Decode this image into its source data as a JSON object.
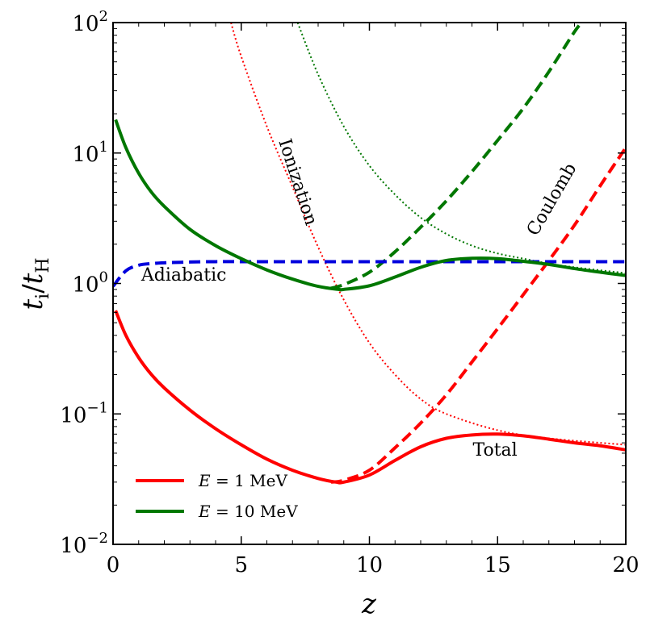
{
  "chart_data": {
    "type": "line",
    "title": "",
    "xlabel": "z",
    "ylabel": "t_i/t_H",
    "ylabel_main": "t",
    "ylabel_sub": "i",
    "ylabel_slash": "/",
    "ylabel_main2": "t",
    "ylabel_sub2": "H",
    "xlim": [
      0,
      20
    ],
    "ylim": [
      0.01,
      100
    ],
    "yscale": "log",
    "x_ticks": [
      {
        "value": 0,
        "label": "0"
      },
      {
        "value": 5,
        "label": "5"
      },
      {
        "value": 10,
        "label": "10"
      },
      {
        "value": 15,
        "label": "15"
      },
      {
        "value": 20,
        "label": "20"
      }
    ],
    "y_ticks": [
      {
        "value": 0.01,
        "base": "10",
        "exp": "−2"
      },
      {
        "value": 0.1,
        "base": "10",
        "exp": "−1"
      },
      {
        "value": 1,
        "base": "10",
        "exp": "0"
      },
      {
        "value": 10,
        "base": "10",
        "exp": "1"
      },
      {
        "value": 100,
        "base": "10",
        "exp": "2"
      }
    ],
    "series": [
      {
        "name": "Adiabatic",
        "color": "#0000dd",
        "style": "dashed",
        "x": [
          0,
          0.5,
          1,
          1.5,
          2,
          3,
          4,
          5,
          7,
          10,
          15,
          20
        ],
        "y": [
          0.95,
          1.25,
          1.38,
          1.42,
          1.44,
          1.46,
          1.47,
          1.47,
          1.47,
          1.47,
          1.47,
          1.47
        ]
      },
      {
        "name": "Ionization E = 1 MeV",
        "color": "#ff0000",
        "style": "dotted",
        "x": [
          4.6,
          5,
          6,
          7,
          8,
          9,
          10,
          11,
          12,
          13,
          15,
          17,
          20
        ],
        "y": [
          100,
          55,
          16,
          5.5,
          1.9,
          0.75,
          0.35,
          0.2,
          0.13,
          0.1,
          0.075,
          0.065,
          0.058
        ]
      },
      {
        "name": "Ionization E = 10 MeV",
        "color": "#007700",
        "style": "dotted",
        "x": [
          7.2,
          8,
          9,
          10,
          11,
          12,
          13,
          14,
          15,
          16,
          17,
          18,
          20
        ],
        "y": [
          100,
          40,
          16,
          8,
          4.8,
          3.2,
          2.4,
          1.95,
          1.7,
          1.55,
          1.42,
          1.33,
          1.2
        ]
      },
      {
        "name": "Coulomb E = 1 MeV",
        "color": "#ff0000",
        "style": "dashed",
        "x": [
          8.5,
          9,
          10,
          11,
          12,
          13,
          14,
          15,
          16,
          17,
          18,
          19,
          20
        ],
        "y": [
          0.03,
          0.031,
          0.037,
          0.055,
          0.085,
          0.14,
          0.25,
          0.45,
          0.82,
          1.5,
          2.8,
          5.6,
          11
        ]
      },
      {
        "name": "Coulomb E = 10 MeV",
        "color": "#007700",
        "style": "dashed",
        "x": [
          8.5,
          9,
          10,
          11,
          12,
          13,
          14,
          15,
          16,
          17,
          18,
          18.3
        ],
        "y": [
          0.92,
          0.98,
          1.22,
          1.75,
          2.7,
          4.3,
          7.2,
          12.5,
          22,
          42,
          85,
          100
        ]
      },
      {
        "name": "E = 1 MeV",
        "color": "#ff0000",
        "style": "solid",
        "legend": true,
        "x": [
          0.1,
          0.5,
          1,
          1.5,
          2,
          3,
          4,
          5,
          6,
          7,
          8,
          8.7,
          9,
          10,
          11,
          12,
          13,
          14,
          15,
          16,
          17,
          18,
          19,
          20
        ],
        "y": [
          0.62,
          0.4,
          0.27,
          0.2,
          0.158,
          0.107,
          0.077,
          0.058,
          0.045,
          0.037,
          0.032,
          0.03,
          0.03,
          0.034,
          0.044,
          0.056,
          0.065,
          0.069,
          0.07,
          0.068,
          0.064,
          0.06,
          0.057,
          0.053
        ]
      },
      {
        "name": "E = 10 MeV",
        "color": "#007700",
        "style": "solid",
        "legend": true,
        "x": [
          0.1,
          0.5,
          1,
          1.5,
          2,
          3,
          4,
          5,
          6,
          7,
          8,
          8.8,
          9,
          10,
          11,
          12,
          13,
          14,
          15,
          16,
          17,
          18,
          19,
          20
        ],
        "y": [
          18,
          11,
          7,
          5,
          3.9,
          2.6,
          1.95,
          1.55,
          1.27,
          1.08,
          0.95,
          0.9,
          0.9,
          0.96,
          1.12,
          1.33,
          1.5,
          1.56,
          1.55,
          1.48,
          1.4,
          1.3,
          1.22,
          1.15
        ]
      }
    ],
    "annotations": [
      {
        "text": "Adiabatic",
        "x": 1.1,
        "y": 1.05,
        "rotate": 0
      },
      {
        "text": "Ionization",
        "x": 7.0,
        "y": 5.8,
        "rotate": 72
      },
      {
        "text": "Coulomb",
        "x": 17.3,
        "y": 4.2,
        "rotate": -60
      },
      {
        "text": "Total",
        "x": 14.9,
        "y": 0.048,
        "rotate": 0
      }
    ],
    "legend": {
      "position": "lower-left",
      "entries": [
        {
          "var": "E",
          "eq": " = 1 MeV",
          "color": "#ff0000"
        },
        {
          "var": "E",
          "eq": " = 10 MeV",
          "color": "#007700"
        }
      ]
    }
  }
}
